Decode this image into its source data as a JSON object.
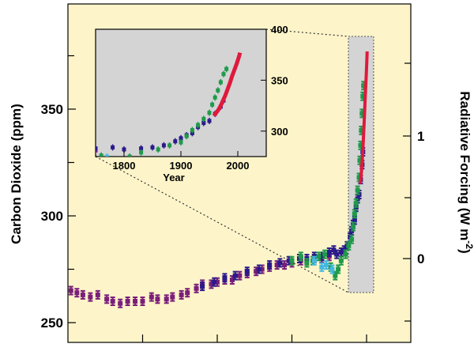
{
  "chart_data": {
    "type": "scatter",
    "title": "",
    "background_color": "#fdf5c9",
    "inset_background_color": "#d4d4d4",
    "ylabel": "Carbon Dioxide (ppm)",
    "ylabel_right_main": "Radiative Forcing (W m",
    "ylabel_right_exponent": "-2",
    "ylabel_right_close": ")",
    "xlim": [
      0,
      2060
    ],
    "ylim": [
      240,
      395
    ],
    "y_ticks": [
      250,
      300,
      350
    ],
    "y_tick_labels": [
      "250",
      "300",
      "350"
    ],
    "x_ticks": [
      500,
      1000,
      1500,
      2000
    ],
    "x_tick_labels": [],
    "right_axis": {
      "ticks_ppm": [
        278,
        335,
        279.5,
        395
      ],
      "labels": [
        {
          "value": "0",
          "at_ppm": 278
        },
        {
          "value": "1",
          "at_ppm": 357
        }
      ],
      "minor_at_ppm": [
        300,
        330,
        378
      ]
    },
    "series": [
      {
        "color": "#7a1f7a",
        "points": [
          [
            20,
            265
          ],
          [
            60,
            264
          ],
          [
            100,
            263
          ],
          [
            150,
            262
          ],
          [
            200,
            263
          ],
          [
            260,
            261
          ],
          [
            300,
            260
          ],
          [
            350,
            259
          ],
          [
            400,
            260
          ],
          [
            450,
            260
          ],
          [
            500,
            260
          ],
          [
            560,
            262
          ],
          [
            600,
            261
          ],
          [
            660,
            261
          ],
          [
            700,
            262
          ],
          [
            760,
            263
          ],
          [
            800,
            264
          ],
          [
            860,
            266
          ],
          [
            900,
            268
          ],
          [
            960,
            268
          ],
          [
            1000,
            269
          ],
          [
            1050,
            270
          ],
          [
            1100,
            270
          ],
          [
            1150,
            272
          ],
          [
            1200,
            273
          ],
          [
            1260,
            274
          ],
          [
            1300,
            275
          ],
          [
            1350,
            276
          ],
          [
            1400,
            277
          ],
          [
            1450,
            277
          ],
          [
            1500,
            278
          ],
          [
            1560,
            279
          ],
          [
            1600,
            279
          ],
          [
            1650,
            280
          ],
          [
            1700,
            280
          ],
          [
            1750,
            281
          ]
        ]
      },
      {
        "color": "#2a1a8a",
        "points": [
          [
            900,
            267
          ],
          [
            980,
            269
          ],
          [
            1050,
            271
          ],
          [
            1120,
            272
          ],
          [
            1200,
            274
          ],
          [
            1280,
            275
          ],
          [
            1350,
            277
          ],
          [
            1420,
            278
          ],
          [
            1480,
            279
          ],
          [
            1550,
            280
          ],
          [
            1600,
            280
          ],
          [
            1650,
            281
          ],
          [
            1700,
            281
          ],
          [
            1750,
            283
          ],
          [
            1780,
            284
          ],
          [
            1800,
            282
          ],
          [
            1830,
            283
          ],
          [
            1850,
            284
          ],
          [
            1870,
            286
          ],
          [
            1890,
            290
          ],
          [
            1900,
            293
          ],
          [
            1910,
            296
          ],
          [
            1920,
            298
          ],
          [
            1930,
            304
          ],
          [
            1940,
            308
          ],
          [
            1950,
            310
          ],
          [
            1960,
            317
          ],
          [
            1970,
            324
          ],
          [
            1975,
            330
          ]
        ]
      },
      {
        "color": "#1f9a4a",
        "points": [
          [
            1500,
            279
          ],
          [
            1560,
            281
          ],
          [
            1600,
            278
          ],
          [
            1640,
            279
          ],
          [
            1680,
            281
          ],
          [
            1720,
            282
          ],
          [
            1760,
            276
          ],
          [
            1790,
            272
          ],
          [
            1810,
            275
          ],
          [
            1830,
            279
          ],
          [
            1860,
            282
          ],
          [
            1880,
            286
          ],
          [
            1900,
            289
          ],
          [
            1910,
            295
          ],
          [
            1920,
            301
          ],
          [
            1930,
            306
          ],
          [
            1940,
            312
          ],
          [
            1950,
            318
          ],
          [
            1955,
            326
          ],
          [
            1960,
            333
          ],
          [
            1965,
            340
          ],
          [
            1970,
            348
          ],
          [
            1975,
            356
          ],
          [
            1980,
            361
          ]
        ]
      },
      {
        "color": "#45b8e0",
        "points": [
          [
            1650,
            279
          ],
          [
            1700,
            276
          ],
          [
            1730,
            277
          ],
          [
            1770,
            275
          ]
        ]
      },
      {
        "color": "#e0193c",
        "points": [
          [
            1958,
            315
          ],
          [
            1962,
            318
          ],
          [
            1966,
            321
          ],
          [
            1970,
            325
          ],
          [
            1974,
            330
          ],
          [
            1978,
            335
          ],
          [
            1982,
            341
          ],
          [
            1986,
            347
          ],
          [
            1990,
            354
          ],
          [
            1994,
            360
          ],
          [
            1998,
            366
          ],
          [
            2002,
            373
          ],
          [
            2004,
            377
          ]
        ]
      }
    ],
    "inset": {
      "xlabel": "Year",
      "xlim": [
        1750,
        2050
      ],
      "ylim": [
        275,
        395
      ],
      "x_ticks": [
        1800,
        1900,
        2000
      ],
      "x_tick_labels": [
        "1800",
        "1900",
        "2000"
      ],
      "y_ticks": [
        300,
        350,
        400
      ],
      "y_tick_labels": [
        "300",
        "350",
        "400"
      ],
      "zoom_region_x": [
        1750,
        2050
      ],
      "zoom_region_y": [
        260,
        395
      ]
    }
  }
}
